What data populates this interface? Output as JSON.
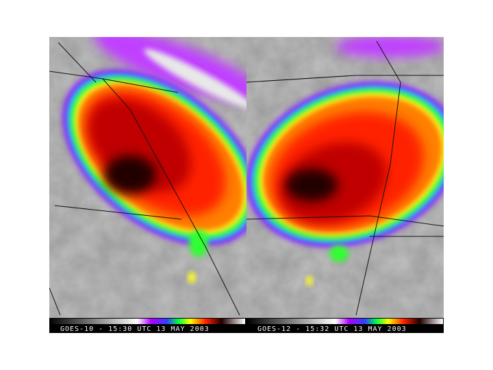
{
  "panels": [
    {
      "label": "GOES-10 - 15:30 UTC 13 MAY 2003"
    },
    {
      "label": "GOES-12 - 15:32 UTC 13 MAY 2003"
    }
  ]
}
